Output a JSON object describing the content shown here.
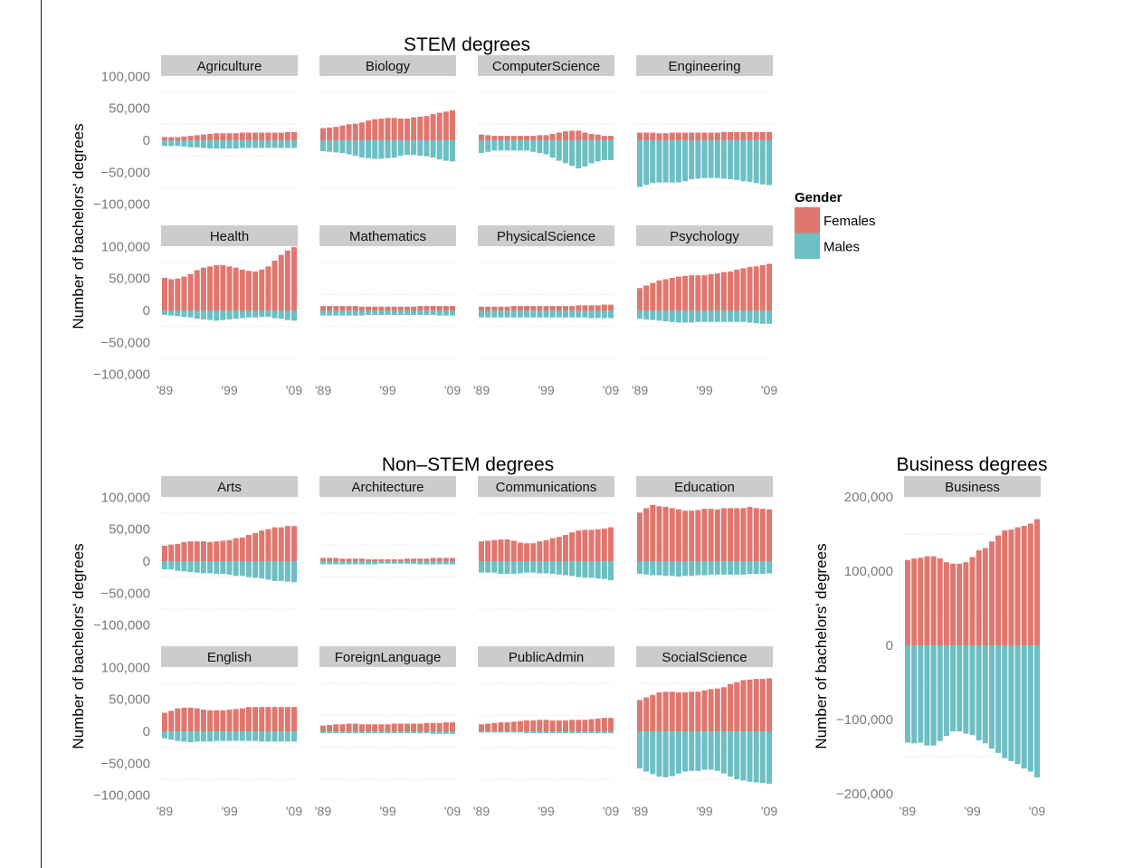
{
  "colors": {
    "Females": "#e0776f",
    "Males": "#6dbfc3",
    "strip": "#cccccc",
    "grid": "#ececec"
  },
  "legend": {
    "title": "Gender",
    "items": [
      "Females",
      "Males"
    ]
  },
  "chart_data": [
    {
      "type": "bar",
      "title": "STEM degrees",
      "ylabel": "Number of bachelors' degrees",
      "xlabel": "",
      "x": [
        1989,
        1990,
        1991,
        1992,
        1993,
        1994,
        1995,
        1996,
        1997,
        1998,
        1999,
        2000,
        2001,
        2002,
        2003,
        2004,
        2005,
        2006,
        2007,
        2008,
        2009
      ],
      "xtick_labels": [
        "'89",
        "'99",
        "'09"
      ],
      "yticks": [
        100000,
        50000,
        0,
        -50000,
        -100000
      ],
      "ytick_labels": [
        "100,000",
        "50,000",
        "0",
        "−50,000",
        "−100,000"
      ],
      "ylim": [
        -100000,
        100000
      ],
      "stacked": "diverging (Males negative)",
      "facets": [
        {
          "name": "Agriculture",
          "Females": [
            5000,
            5000,
            5000,
            6000,
            7000,
            8000,
            9000,
            10000,
            11000,
            11000,
            11000,
            11000,
            12000,
            12000,
            12000,
            12000,
            12000,
            12000,
            12000,
            13000,
            13000
          ],
          "Males": [
            -9000,
            -9000,
            -9000,
            -10000,
            -11000,
            -11000,
            -12000,
            -13000,
            -13000,
            -13000,
            -13000,
            -13000,
            -12000,
            -12000,
            -12000,
            -12000,
            -12000,
            -12000,
            -12000,
            -12000,
            -12000
          ]
        },
        {
          "name": "Biology",
          "Females": [
            19000,
            20000,
            21000,
            23000,
            25000,
            26000,
            28000,
            31000,
            33000,
            34000,
            35000,
            35000,
            34000,
            34000,
            36000,
            37000,
            38000,
            41000,
            43000,
            45000,
            47000
          ],
          "Males": [
            -17000,
            -18000,
            -19000,
            -20000,
            -22000,
            -24000,
            -27000,
            -28000,
            -29000,
            -29000,
            -28000,
            -27000,
            -24000,
            -23000,
            -23000,
            -24000,
            -25000,
            -27000,
            -30000,
            -32000,
            -33000
          ]
        },
        {
          "name": "ComputerScience",
          "Females": [
            9000,
            8000,
            7000,
            7000,
            7000,
            7000,
            7000,
            7000,
            7000,
            8000,
            8000,
            10000,
            12000,
            14000,
            15000,
            15000,
            12000,
            10000,
            9000,
            7000,
            7000
          ],
          "Males": [
            -20000,
            -18000,
            -16000,
            -16000,
            -16000,
            -16000,
            -16000,
            -16000,
            -18000,
            -20000,
            -22000,
            -27000,
            -32000,
            -36000,
            -40000,
            -44000,
            -41000,
            -36000,
            -33000,
            -31000,
            -31000
          ]
        },
        {
          "name": "Engineering",
          "Females": [
            12000,
            12000,
            12000,
            11000,
            11000,
            12000,
            12000,
            12000,
            12000,
            12000,
            12000,
            12000,
            12000,
            13000,
            13000,
            13000,
            13000,
            13000,
            13000,
            13000,
            13000
          ],
          "Males": [
            -73000,
            -70000,
            -67000,
            -66000,
            -66000,
            -66000,
            -66000,
            -64000,
            -61000,
            -60000,
            -59000,
            -59000,
            -59000,
            -60000,
            -61000,
            -62000,
            -64000,
            -65000,
            -67000,
            -69000,
            -70000
          ]
        },
        {
          "name": "Health",
          "Females": [
            51000,
            49000,
            50000,
            53000,
            57000,
            63000,
            67000,
            69000,
            71000,
            71000,
            69000,
            67000,
            64000,
            62000,
            61000,
            64000,
            69000,
            78000,
            87000,
            94000,
            99000
          ],
          "Males": [
            -7000,
            -8000,
            -9000,
            -10000,
            -11000,
            -13000,
            -14000,
            -15000,
            -16000,
            -15000,
            -14000,
            -13000,
            -12000,
            -11000,
            -11000,
            -10000,
            -10000,
            -12000,
            -13000,
            -15000,
            -16000
          ]
        },
        {
          "name": "Mathematics",
          "Females": [
            7000,
            7000,
            7000,
            7000,
            7000,
            7000,
            6000,
            6000,
            6000,
            6000,
            6000,
            6000,
            6000,
            6000,
            6000,
            7000,
            7000,
            7000,
            7000,
            7000,
            7000
          ],
          "Males": [
            -8000,
            -8000,
            -8000,
            -8000,
            -8000,
            -8000,
            -8000,
            -7000,
            -7000,
            -7000,
            -7000,
            -7000,
            -7000,
            -7000,
            -7000,
            -7000,
            -7000,
            -7000,
            -8000,
            -8000,
            -8000
          ]
        },
        {
          "name": "PhysicalScience",
          "Females": [
            6000,
            6000,
            6000,
            6000,
            6000,
            7000,
            7000,
            7000,
            7000,
            7000,
            7000,
            7000,
            7000,
            7000,
            7000,
            8000,
            8000,
            8000,
            8000,
            9000,
            9000
          ],
          "Males": [
            -11000,
            -11000,
            -11000,
            -11000,
            -11000,
            -11000,
            -11000,
            -11000,
            -11000,
            -11000,
            -11000,
            -11000,
            -11000,
            -11000,
            -11000,
            -11000,
            -11000,
            -12000,
            -12000,
            -12000,
            -12000
          ]
        },
        {
          "name": "Psychology",
          "Females": [
            35000,
            39000,
            43000,
            47000,
            49000,
            51000,
            53000,
            54000,
            55000,
            55000,
            55000,
            57000,
            58000,
            60000,
            61000,
            64000,
            66000,
            68000,
            69000,
            71000,
            73000
          ],
          "Males": [
            -13000,
            -14000,
            -15000,
            -16000,
            -17000,
            -18000,
            -19000,
            -19000,
            -19000,
            -18000,
            -18000,
            -18000,
            -18000,
            -18000,
            -18000,
            -18000,
            -18000,
            -19000,
            -20000,
            -21000,
            -21000
          ]
        }
      ]
    },
    {
      "type": "bar",
      "title": "Non–STEM degrees",
      "ylabel": "Number of bachelors' degrees",
      "xlabel": "",
      "x": [
        1989,
        1990,
        1991,
        1992,
        1993,
        1994,
        1995,
        1996,
        1997,
        1998,
        1999,
        2000,
        2001,
        2002,
        2003,
        2004,
        2005,
        2006,
        2007,
        2008,
        2009
      ],
      "xtick_labels": [
        "'89",
        "'99",
        "'09"
      ],
      "yticks": [
        100000,
        50000,
        0,
        -50000,
        -100000
      ],
      "ytick_labels": [
        "100,000",
        "50,000",
        "0",
        "−50,000",
        "−100,000"
      ],
      "ylim": [
        -100000,
        100000
      ],
      "stacked": "diverging (Males negative)",
      "facets": [
        {
          "name": "Arts",
          "Females": [
            24000,
            26000,
            27000,
            30000,
            31000,
            31000,
            31000,
            30000,
            31000,
            32000,
            33000,
            36000,
            37000,
            41000,
            44000,
            48000,
            50000,
            53000,
            53000,
            55000,
            55000
          ],
          "Males": [
            -13000,
            -13000,
            -15000,
            -16000,
            -17000,
            -18000,
            -19000,
            -19000,
            -20000,
            -20000,
            -21000,
            -23000,
            -23000,
            -25000,
            -26000,
            -27000,
            -29000,
            -31000,
            -31000,
            -32000,
            -33000
          ]
        },
        {
          "name": "Architecture",
          "Females": [
            5000,
            5000,
            5000,
            4000,
            4000,
            4000,
            4000,
            3000,
            3000,
            3000,
            3000,
            3000,
            3000,
            4000,
            4000,
            4000,
            4000,
            5000,
            5000,
            5000,
            5000
          ],
          "Males": [
            -5000,
            -5000,
            -5000,
            -5000,
            -5000,
            -5000,
            -5000,
            -5000,
            -5000,
            -4000,
            -4000,
            -4000,
            -4000,
            -4000,
            -4000,
            -5000,
            -5000,
            -5000,
            -5000,
            -5000,
            -5000
          ]
        },
        {
          "name": "Communications",
          "Females": [
            31000,
            32000,
            33000,
            34000,
            34000,
            32000,
            29000,
            28000,
            28000,
            31000,
            33000,
            36000,
            38000,
            41000,
            45000,
            48000,
            49000,
            49000,
            50000,
            51000,
            53000
          ],
          "Males": [
            -18000,
            -18000,
            -18000,
            -20000,
            -20000,
            -20000,
            -19000,
            -18000,
            -18000,
            -19000,
            -19000,
            -20000,
            -21000,
            -22000,
            -23000,
            -25000,
            -26000,
            -26000,
            -27000,
            -28000,
            -30000
          ]
        },
        {
          "name": "Education",
          "Females": [
            76000,
            83000,
            88000,
            86000,
            85000,
            83000,
            81000,
            79000,
            79000,
            80000,
            82000,
            82000,
            81000,
            83000,
            83000,
            83000,
            83000,
            85000,
            83000,
            82000,
            81000
          ],
          "Males": [
            -20000,
            -21000,
            -22000,
            -22000,
            -23000,
            -23000,
            -24000,
            -23000,
            -23000,
            -22000,
            -22000,
            -21000,
            -21000,
            -21000,
            -21000,
            -21000,
            -21000,
            -20000,
            -20000,
            -20000,
            -19000
          ]
        },
        {
          "name": "English",
          "Females": [
            29000,
            32000,
            36000,
            37000,
            37000,
            36000,
            34000,
            33000,
            33000,
            33000,
            34000,
            35000,
            36000,
            38000,
            38000,
            38000,
            38000,
            38000,
            38000,
            38000,
            38000
          ],
          "Males": [
            -11000,
            -13000,
            -15000,
            -16000,
            -17000,
            -16000,
            -16000,
            -16000,
            -15000,
            -15000,
            -15000,
            -15000,
            -15000,
            -15000,
            -15000,
            -16000,
            -16000,
            -16000,
            -16000,
            -16000,
            -16000
          ]
        },
        {
          "name": "ForeignLanguage",
          "Females": [
            9000,
            10000,
            11000,
            11000,
            12000,
            12000,
            11000,
            11000,
            11000,
            11000,
            11000,
            12000,
            12000,
            12000,
            12000,
            12000,
            13000,
            13000,
            13000,
            14000,
            14000
          ],
          "Males": [
            -3000,
            -3000,
            -3000,
            -3000,
            -3000,
            -3000,
            -3000,
            -3000,
            -3000,
            -3000,
            -3000,
            -3000,
            -3000,
            -3000,
            -3000,
            -3000,
            -3000,
            -4000,
            -4000,
            -4000,
            -4000
          ]
        },
        {
          "name": "PublicAdmin",
          "Females": [
            11000,
            12000,
            13000,
            14000,
            14000,
            15000,
            16000,
            17000,
            17000,
            18000,
            18000,
            17000,
            17000,
            17000,
            18000,
            18000,
            18000,
            19000,
            20000,
            21000,
            21000
          ],
          "Males": [
            -2000,
            -2000,
            -2000,
            -2000,
            -2000,
            -2000,
            -2000,
            -3000,
            -3000,
            -3000,
            -3000,
            -3000,
            -3000,
            -3000,
            -3000,
            -3000,
            -3000,
            -3000,
            -3000,
            -3000,
            -3000
          ]
        },
        {
          "name": "SocialScience",
          "Females": [
            49000,
            53000,
            57000,
            61000,
            62000,
            62000,
            61000,
            61000,
            62000,
            62000,
            64000,
            66000,
            67000,
            69000,
            74000,
            77000,
            80000,
            81000,
            82000,
            82000,
            83000
          ],
          "Males": [
            -58000,
            -63000,
            -67000,
            -71000,
            -72000,
            -70000,
            -66000,
            -63000,
            -62000,
            -62000,
            -60000,
            -60000,
            -62000,
            -66000,
            -71000,
            -75000,
            -77000,
            -79000,
            -80000,
            -81000,
            -82000
          ]
        }
      ]
    },
    {
      "type": "bar",
      "title": "Business degrees",
      "ylabel": "Number of bachelors' degrees",
      "xlabel": "",
      "x": [
        1989,
        1990,
        1991,
        1992,
        1993,
        1994,
        1995,
        1996,
        1997,
        1998,
        1999,
        2000,
        2001,
        2002,
        2003,
        2004,
        2005,
        2006,
        2007,
        2008,
        2009
      ],
      "xtick_labels": [
        "'89",
        "'99",
        "'09"
      ],
      "yticks": [
        200000,
        100000,
        0,
        -100000,
        -200000
      ],
      "ytick_labels": [
        "200,000",
        "100,000",
        "0",
        "−100,000",
        "−200,000"
      ],
      "ylim": [
        -200000,
        200000
      ],
      "stacked": "diverging (Males negative)",
      "facets": [
        {
          "name": "Business",
          "Females": [
            115000,
            117000,
            118000,
            120000,
            120000,
            117000,
            112000,
            110000,
            110000,
            112000,
            119000,
            128000,
            131000,
            140000,
            148000,
            155000,
            156000,
            159000,
            161000,
            164000,
            170000
          ],
          "Males": [
            -131000,
            -132000,
            -131000,
            -135000,
            -135000,
            -129000,
            -122000,
            -116000,
            -116000,
            -119000,
            -121000,
            -128000,
            -132000,
            -139000,
            -145000,
            -152000,
            -156000,
            -160000,
            -166000,
            -170000,
            -178000
          ]
        }
      ]
    }
  ]
}
